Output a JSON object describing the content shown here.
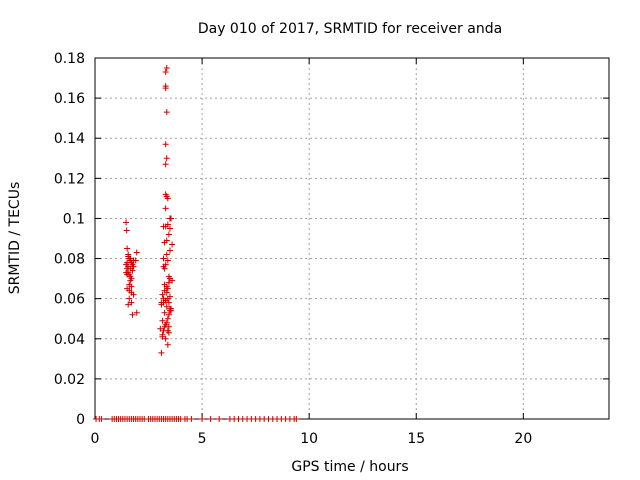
{
  "chart_data": {
    "type": "scatter",
    "title": "Day 010 of 2017, SRMTID for receiver anda",
    "xlabel": "GPS time / hours",
    "ylabel": "SRMTID / TECUs",
    "xlim": [
      0,
      24
    ],
    "ylim": [
      0,
      0.18
    ],
    "xticks": [
      0,
      5,
      10,
      15,
      20
    ],
    "yticks": [
      0,
      0.02,
      0.04,
      0.06,
      0.08,
      0.1,
      0.12,
      0.14,
      0.16,
      0.18
    ],
    "grid": true,
    "marker": "+",
    "color": "#d00000",
    "series": [
      {
        "name": "SRMTID",
        "x": [
          1.45,
          1.48,
          1.5,
          1.55,
          1.6,
          1.65,
          1.7,
          1.75,
          1.8,
          1.95,
          1.5,
          1.55,
          1.6,
          1.65,
          1.7,
          1.5,
          1.6,
          1.7,
          1.8,
          1.45,
          1.55,
          1.65,
          1.75,
          1.6,
          1.7,
          1.55,
          1.95,
          1.5,
          1.65,
          1.6,
          1.7,
          1.75,
          1.8,
          1.55,
          1.65,
          1.9,
          1.45,
          1.5,
          3.1,
          3.15,
          3.2,
          3.25,
          3.3,
          3.35,
          3.4,
          3.45,
          3.5,
          3.55,
          3.1,
          3.2,
          3.3,
          3.4,
          3.5,
          3.15,
          3.25,
          3.35,
          3.45,
          3.2,
          3.3,
          3.4,
          3.5,
          3.6,
          3.25,
          3.35,
          3.45,
          3.05,
          3.15,
          3.25,
          3.35,
          3.45,
          3.3,
          3.4,
          3.5,
          3.2,
          3.3,
          3.4,
          3.3,
          3.35,
          3.3,
          3.35,
          3.3,
          3.35,
          3.3,
          3.3,
          3.3,
          3.35,
          3.5,
          3.55,
          3.3,
          3.4,
          3.2,
          3.5,
          3.4,
          3.45,
          3.3,
          3.25,
          3.45,
          3.55,
          3.15,
          3.35,
          3.4,
          3.5,
          3.6,
          3.2,
          3.1,
          3.25,
          3.45,
          3.35,
          0.05,
          0.2,
          0.3,
          0.8,
          0.9,
          1.0,
          1.1,
          1.2,
          1.3,
          1.4,
          1.5,
          1.6,
          1.7,
          1.8,
          1.9,
          2.0,
          2.1,
          2.2,
          2.3,
          2.5,
          2.6,
          2.7,
          2.8,
          2.9,
          3.0,
          3.1,
          3.2,
          3.3,
          3.4,
          3.5,
          3.6,
          3.7,
          3.8,
          3.9,
          4.0,
          4.2,
          4.3,
          4.5,
          5.0,
          5.4,
          5.8,
          6.3,
          6.5,
          6.7,
          6.9,
          7.1,
          7.3,
          7.5,
          7.7,
          7.9,
          8.1,
          8.3,
          8.5,
          8.7,
          8.9,
          9.1,
          9.3,
          9.4
        ],
        "y": [
          0.098,
          0.094,
          0.085,
          0.082,
          0.08,
          0.079,
          0.078,
          0.077,
          0.076,
          0.083,
          0.075,
          0.073,
          0.072,
          0.071,
          0.07,
          0.065,
          0.064,
          0.063,
          0.062,
          0.077,
          0.076,
          0.075,
          0.074,
          0.06,
          0.058,
          0.057,
          0.053,
          0.072,
          0.069,
          0.067,
          0.066,
          0.052,
          0.079,
          0.081,
          0.08,
          0.079,
          0.073,
          0.078,
          0.033,
          0.042,
          0.044,
          0.046,
          0.047,
          0.048,
          0.05,
          0.052,
          0.054,
          0.055,
          0.057,
          0.058,
          0.059,
          0.06,
          0.061,
          0.062,
          0.064,
          0.066,
          0.068,
          0.076,
          0.077,
          0.079,
          0.084,
          0.087,
          0.088,
          0.089,
          0.092,
          0.045,
          0.049,
          0.053,
          0.056,
          0.058,
          0.096,
          0.097,
          0.1,
          0.096,
          0.105,
          0.11,
          0.112,
          0.111,
          0.127,
          0.13,
          0.137,
          0.153,
          0.165,
          0.166,
          0.173,
          0.175,
          0.095,
          0.1,
          0.04,
          0.037,
          0.06,
          0.07,
          0.044,
          0.043,
          0.059,
          0.067,
          0.071,
          0.054,
          0.041,
          0.063,
          0.065,
          0.055,
          0.069,
          0.08,
          0.058,
          0.075,
          0.046,
          0.082,
          0,
          0,
          0,
          0,
          0,
          0,
          0,
          0,
          0,
          0,
          0,
          0,
          0,
          0,
          0,
          0,
          0,
          0,
          0,
          0,
          0,
          0,
          0,
          0,
          0,
          0,
          0,
          0,
          0,
          0,
          0,
          0,
          0,
          0,
          0,
          0,
          0,
          0,
          0,
          0,
          0,
          0,
          0,
          0,
          0,
          0,
          0,
          0,
          0,
          0,
          0,
          0,
          0,
          0,
          0,
          0,
          0,
          0
        ]
      }
    ]
  }
}
